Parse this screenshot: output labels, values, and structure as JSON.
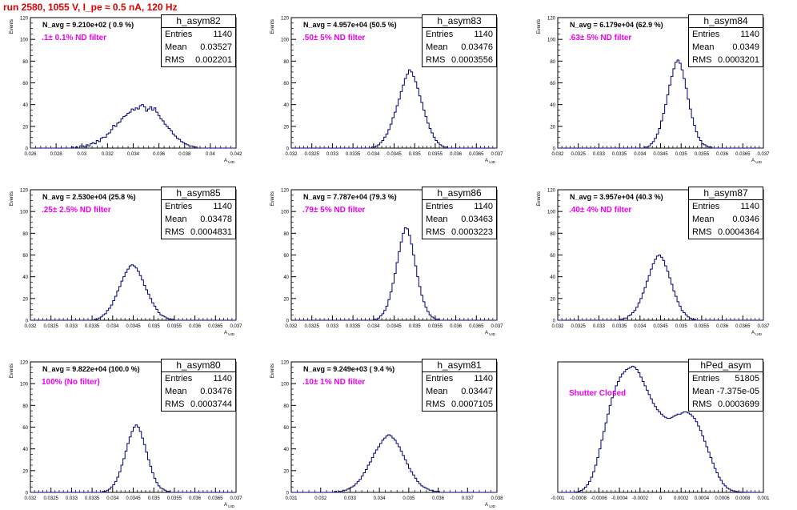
{
  "title": "run 2580,  1055 V, I_pe ≈ 0.5 nA, 120 Hz",
  "colors": {
    "title": "#e00000",
    "histogram": "#00007a",
    "annotation": "#ee00ee",
    "axis": "#000000"
  },
  "chart_data": [
    {
      "type": "bar",
      "name": "h_asym82",
      "annotation_navg": "N_avg = 9.210e+02 ( 0.9 %)",
      "annotation_filter": ".1± 0.1% ND filter",
      "stats": {
        "entries": "1140",
        "mean": "0.03527",
        "rms": "0.002201"
      },
      "xlabel": "A_UID",
      "ylabel": "Events",
      "xlim": [
        0.026,
        0.042
      ],
      "ylim": [
        0,
        120
      ],
      "xticks": [
        "0.026",
        "0.028",
        "0.03",
        "0.032",
        "0.034",
        "0.036",
        "0.038",
        "0.04",
        "0.042"
      ],
      "yticks": [
        "0",
        "20",
        "40",
        "60",
        "80",
        "100",
        "120"
      ],
      "values": [
        0,
        0,
        0,
        0,
        0,
        0,
        0,
        0,
        0,
        0,
        0,
        0,
        0,
        0,
        0,
        0,
        0,
        0,
        0,
        0,
        1,
        0,
        1,
        0,
        2,
        2,
        1,
        3,
        2,
        4,
        5,
        4,
        7,
        6,
        9,
        10,
        10,
        13,
        14,
        17,
        21,
        20,
        23,
        24,
        27,
        29,
        30,
        32,
        33,
        36,
        35,
        37,
        36,
        39,
        40,
        38,
        34,
        36,
        38,
        35,
        37,
        33,
        30,
        27,
        25,
        22,
        20,
        18,
        16,
        13,
        11,
        9,
        8,
        6,
        5,
        4,
        3,
        2,
        2,
        1,
        1,
        0,
        0,
        0,
        0,
        0,
        0,
        0,
        0,
        0,
        0,
        0,
        0,
        0,
        0,
        0,
        0,
        0,
        0,
        0
      ]
    },
    {
      "type": "bar",
      "name": "h_asym83",
      "annotation_navg": "N_avg = 4.957e+04 (50.5 %)",
      "annotation_filter": ".50± 5% ND filter",
      "stats": {
        "entries": "1140",
        "mean": "0.03476",
        "rms": "0.0003556"
      },
      "xlabel": "A_UID",
      "ylabel": "Events",
      "xlim": [
        0.032,
        0.037
      ],
      "ylim": [
        0,
        120
      ],
      "xticks": [
        "0.032",
        "0.0325",
        "0.033",
        "0.0335",
        "0.034",
        "0.0345",
        "0.035",
        "0.0355",
        "0.036",
        "0.0365",
        "0.037"
      ],
      "yticks": [
        "0",
        "20",
        "40",
        "60",
        "80",
        "100",
        "120"
      ],
      "values": [
        0,
        0,
        0,
        0,
        0,
        0,
        0,
        0,
        0,
        0,
        0,
        0,
        0,
        0,
        0,
        0,
        0,
        0,
        0,
        0,
        0,
        0,
        0,
        0,
        0,
        0,
        0,
        0,
        0,
        0,
        0,
        0,
        0,
        0,
        0,
        0,
        0,
        0,
        0,
        1,
        1,
        2,
        3,
        5,
        7,
        10,
        13,
        17,
        22,
        28,
        33,
        39,
        45,
        52,
        58,
        64,
        68,
        72,
        70,
        66,
        61,
        55,
        48,
        42,
        35,
        29,
        23,
        18,
        14,
        10,
        7,
        5,
        3,
        2,
        1,
        1,
        0,
        0,
        0,
        0,
        0,
        0,
        0,
        0,
        0,
        0,
        0,
        0,
        0,
        0,
        0,
        0,
        0,
        0,
        0,
        0,
        0,
        0,
        0,
        0
      ]
    },
    {
      "type": "bar",
      "name": "h_asym84",
      "annotation_navg": "N_avg = 6.179e+04 (62.9 %)",
      "annotation_filter": ".63± 5% ND filter",
      "stats": {
        "entries": "1140",
        "mean": "0.0349",
        "rms": "0.0003201"
      },
      "xlabel": "A_UID",
      "ylabel": "Events",
      "xlim": [
        0.032,
        0.037
      ],
      "ylim": [
        0,
        120
      ],
      "xticks": [
        "0.032",
        "0.0325",
        "0.033",
        "0.0335",
        "0.034",
        "0.0345",
        "0.035",
        "0.0355",
        "0.036",
        "0.0365",
        "0.037"
      ],
      "yticks": [
        "0",
        "20",
        "40",
        "60",
        "80",
        "100",
        "120"
      ],
      "values": [
        0,
        0,
        0,
        0,
        0,
        0,
        0,
        0,
        0,
        0,
        0,
        0,
        0,
        0,
        0,
        0,
        0,
        0,
        0,
        0,
        0,
        0,
        0,
        0,
        0,
        0,
        0,
        0,
        0,
        0,
        0,
        0,
        0,
        0,
        0,
        0,
        0,
        0,
        0,
        0,
        0,
        0,
        1,
        1,
        2,
        4,
        6,
        9,
        13,
        18,
        25,
        32,
        40,
        49,
        58,
        66,
        73,
        79,
        81,
        78,
        72,
        64,
        55,
        45,
        36,
        28,
        21,
        15,
        10,
        7,
        4,
        3,
        2,
        1,
        1,
        0,
        0,
        0,
        0,
        0,
        0,
        0,
        0,
        0,
        0,
        0,
        0,
        0,
        0,
        0,
        0,
        0,
        0,
        0,
        0,
        0,
        0,
        0,
        0,
        0
      ]
    },
    {
      "type": "bar",
      "name": "h_asym85",
      "annotation_navg": "N_avg = 2.530e+04 (25.8 %)",
      "annotation_filter": ".25± 2.5% ND filter",
      "stats": {
        "entries": "1140",
        "mean": "0.03478",
        "rms": "0.0004831"
      },
      "xlabel": "A_UID",
      "ylabel": "Events",
      "xlim": [
        0.032,
        0.037
      ],
      "ylim": [
        0,
        120
      ],
      "xticks": [
        "0.032",
        "0.0325",
        "0.033",
        "0.0335",
        "0.034",
        "0.0345",
        "0.035",
        "0.0355",
        "0.036",
        "0.0365",
        "0.037"
      ],
      "yticks": [
        "0",
        "20",
        "40",
        "60",
        "80",
        "100",
        "120"
      ],
      "values": [
        0,
        0,
        0,
        0,
        0,
        0,
        0,
        0,
        0,
        0,
        0,
        0,
        0,
        0,
        0,
        0,
        0,
        0,
        0,
        0,
        0,
        0,
        0,
        0,
        0,
        0,
        0,
        0,
        0,
        0,
        0,
        1,
        1,
        2,
        3,
        5,
        6,
        9,
        11,
        14,
        18,
        22,
        27,
        31,
        36,
        40,
        44,
        47,
        50,
        51,
        50,
        48,
        45,
        41,
        37,
        32,
        28,
        24,
        20,
        16,
        13,
        10,
        7,
        5,
        4,
        3,
        2,
        1,
        1,
        1,
        0,
        0,
        0,
        0,
        0,
        0,
        0,
        0,
        0,
        0,
        0,
        0,
        0,
        0,
        0,
        0,
        0,
        0,
        0,
        0,
        0,
        0,
        0,
        0,
        0,
        0,
        0,
        0,
        0,
        0
      ]
    },
    {
      "type": "bar",
      "name": "h_asym86",
      "annotation_navg": "N_avg = 7.787e+04 (79.3 %)",
      "annotation_filter": ".79± 5% ND filter",
      "stats": {
        "entries": "1140",
        "mean": "0.03463",
        "rms": "0.0003223"
      },
      "xlabel": "A_UID",
      "ylabel": "Events",
      "xlim": [
        0.032,
        0.037
      ],
      "ylim": [
        0,
        120
      ],
      "xticks": [
        "0.032",
        "0.0325",
        "0.033",
        "0.0335",
        "0.034",
        "0.0345",
        "0.035",
        "0.0355",
        "0.036",
        "0.0365",
        "0.037"
      ],
      "yticks": [
        "0",
        "20",
        "40",
        "60",
        "80",
        "100",
        "120"
      ],
      "values": [
        0,
        0,
        0,
        0,
        0,
        0,
        0,
        0,
        0,
        0,
        0,
        0,
        0,
        0,
        0,
        0,
        0,
        0,
        0,
        0,
        0,
        0,
        0,
        0,
        0,
        0,
        0,
        0,
        0,
        0,
        0,
        0,
        0,
        0,
        0,
        0,
        0,
        0,
        0,
        0,
        1,
        1,
        2,
        4,
        6,
        9,
        13,
        19,
        26,
        34,
        43,
        53,
        63,
        72,
        80,
        85,
        84,
        78,
        70,
        60,
        50,
        40,
        31,
        23,
        17,
        12,
        8,
        5,
        3,
        2,
        1,
        1,
        0,
        0,
        0,
        0,
        0,
        0,
        0,
        0,
        0,
        0,
        0,
        0,
        0,
        0,
        0,
        0,
        0,
        0,
        0,
        0,
        0,
        0,
        0,
        0,
        0,
        0,
        0,
        0
      ]
    },
    {
      "type": "bar",
      "name": "h_asym87",
      "annotation_navg": "N_avg = 3.957e+04 (40.3 %)",
      "annotation_filter": ".40± 4% ND filter",
      "stats": {
        "entries": "1140",
        "mean": "0.0346",
        "rms": "0.0004364"
      },
      "xlabel": "A_UID",
      "ylabel": "Events",
      "xlim": [
        0.032,
        0.037
      ],
      "ylim": [
        0,
        120
      ],
      "xticks": [
        "0.032",
        "0.0325",
        "0.033",
        "0.0335",
        "0.034",
        "0.0345",
        "0.035",
        "0.0355",
        "0.036",
        "0.0365",
        "0.037"
      ],
      "yticks": [
        "0",
        "20",
        "40",
        "60",
        "80",
        "100",
        "120"
      ],
      "values": [
        0,
        0,
        0,
        0,
        0,
        0,
        0,
        0,
        0,
        0,
        0,
        0,
        0,
        0,
        0,
        0,
        0,
        0,
        0,
        0,
        0,
        0,
        0,
        0,
        0,
        0,
        0,
        0,
        0,
        0,
        1,
        1,
        2,
        2,
        4,
        5,
        7,
        9,
        12,
        16,
        20,
        25,
        30,
        36,
        41,
        47,
        52,
        56,
        59,
        60,
        58,
        55,
        50,
        45,
        39,
        33,
        27,
        22,
        17,
        13,
        9,
        7,
        5,
        3,
        2,
        1,
        1,
        0,
        0,
        0,
        0,
        0,
        0,
        0,
        0,
        0,
        0,
        0,
        0,
        0,
        0,
        0,
        0,
        0,
        0,
        0,
        0,
        0,
        0,
        0,
        0,
        0,
        0,
        0,
        0,
        0,
        0,
        0,
        0,
        0
      ]
    },
    {
      "type": "bar",
      "name": "h_asym80",
      "annotation_navg": "N_avg = 9.822e+04 (100.0 %)",
      "annotation_filter": "100% (No filter)",
      "stats": {
        "entries": "1140",
        "mean": "0.03476",
        "rms": "0.0003744"
      },
      "xlabel": "A_UID",
      "ylabel": "Events",
      "xlim": [
        0.032,
        0.037
      ],
      "ylim": [
        0,
        120
      ],
      "xticks": [
        "0.032",
        "0.0325",
        "0.033",
        "0.0335",
        "0.034",
        "0.0345",
        "0.035",
        "0.0355",
        "0.036",
        "0.0365",
        "0.037"
      ],
      "yticks": [
        "0",
        "20",
        "40",
        "60",
        "80",
        "100",
        "120"
      ],
      "values": [
        0,
        0,
        0,
        0,
        0,
        0,
        0,
        0,
        0,
        0,
        0,
        0,
        0,
        0,
        0,
        0,
        0,
        0,
        0,
        0,
        0,
        0,
        0,
        0,
        0,
        0,
        0,
        0,
        0,
        0,
        0,
        0,
        0,
        0,
        0,
        1,
        1,
        2,
        3,
        5,
        7,
        10,
        14,
        19,
        25,
        31,
        38,
        45,
        51,
        56,
        60,
        62,
        60,
        56,
        50,
        44,
        37,
        30,
        24,
        18,
        13,
        9,
        6,
        4,
        3,
        2,
        1,
        1,
        0,
        0,
        0,
        0,
        0,
        0,
        0,
        0,
        0,
        0,
        0,
        0,
        0,
        0,
        0,
        0,
        0,
        0,
        0,
        0,
        0,
        0,
        0,
        0,
        0,
        0,
        0,
        0,
        0,
        0,
        0,
        0
      ]
    },
    {
      "type": "bar",
      "name": "h_asym81",
      "annotation_navg": "N_avg = 9.249e+03 ( 9.4 %)",
      "annotation_filter": ".10± 1% ND filter",
      "stats": {
        "entries": "1140",
        "mean": "0.03447",
        "rms": "0.0007105"
      },
      "xlabel": "A_UID",
      "ylabel": "Events",
      "xlim": [
        0.031,
        0.038
      ],
      "ylim": [
        0,
        120
      ],
      "xticks": [
        "0.031",
        "0.032",
        "0.033",
        "0.034",
        "0.035",
        "0.036",
        "0.037",
        "0.038"
      ],
      "yticks": [
        "0",
        "20",
        "40",
        "60",
        "80",
        "100",
        "120"
      ],
      "values": [
        0,
        0,
        0,
        0,
        0,
        0,
        0,
        0,
        0,
        0,
        0,
        0,
        0,
        0,
        0,
        0,
        0,
        0,
        0,
        0,
        0,
        1,
        0,
        1,
        1,
        2,
        2,
        3,
        4,
        5,
        6,
        8,
        10,
        12,
        15,
        18,
        21,
        25,
        28,
        32,
        36,
        39,
        42,
        45,
        48,
        50,
        52,
        53,
        52,
        50,
        48,
        45,
        42,
        38,
        34,
        30,
        26,
        22,
        19,
        16,
        13,
        10,
        8,
        6,
        5,
        4,
        3,
        2,
        2,
        1,
        1,
        1,
        0,
        0,
        0,
        0,
        0,
        0,
        0,
        0,
        0,
        0,
        0,
        0,
        0,
        0,
        0,
        0,
        0,
        0,
        0,
        0,
        0,
        0,
        0,
        0,
        0,
        0,
        0,
        0
      ]
    },
    {
      "type": "bar",
      "name": "hPed_asym",
      "annotation_navg": "",
      "annotation_filter": "Shutter Closed",
      "stats": {
        "entries": "51805",
        "mean": "-7.375e-05",
        "rms": "0.0003699"
      },
      "xlabel": "",
      "ylabel": "",
      "xlim": [
        -0.001,
        0.001
      ],
      "ylim": [
        0,
        1200
      ],
      "xticks": [
        "-0.001",
        "-0.0008",
        "-0.0006",
        "-0.0004",
        "-0.0002",
        "0",
        "0.0002",
        "0.0004",
        "0.0006",
        "0.0008",
        "0.001"
      ],
      "yticks": [],
      "values": [
        0,
        0,
        0,
        0,
        0,
        0,
        0,
        0,
        2,
        5,
        10,
        18,
        30,
        48,
        70,
        100,
        140,
        190,
        250,
        320,
        400,
        480,
        560,
        640,
        720,
        800,
        870,
        930,
        980,
        1020,
        1060,
        1090,
        1110,
        1130,
        1140,
        1150,
        1160,
        1150,
        1130,
        1100,
        1060,
        1020,
        980,
        940,
        900,
        860,
        820,
        790,
        760,
        740,
        720,
        700,
        690,
        680,
        680,
        690,
        700,
        710,
        720,
        720,
        730,
        740,
        740,
        730,
        720,
        700,
        680,
        650,
        610,
        570,
        520,
        470,
        420,
        370,
        320,
        270,
        220,
        180,
        140,
        110,
        80,
        60,
        40,
        30,
        20,
        14,
        9,
        6,
        4,
        3,
        2,
        1,
        1,
        0,
        0,
        0,
        0,
        0,
        0,
        0
      ]
    }
  ]
}
